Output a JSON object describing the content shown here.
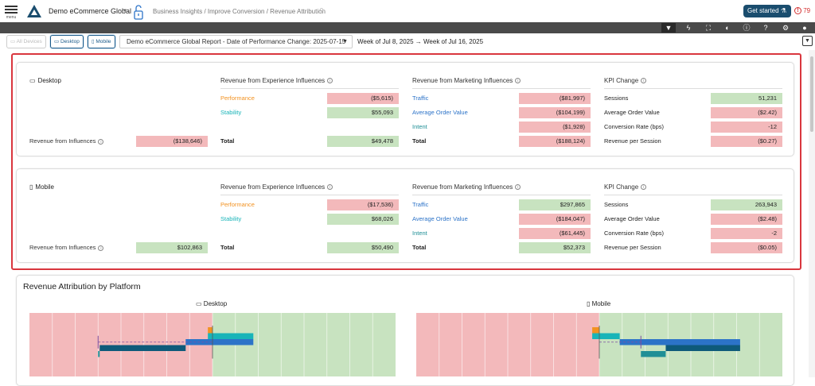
{
  "header": {
    "menu_label": "menu",
    "org_name": "Demo eCommerce Global",
    "breadcrumb": "Business Insights / Improve Conversion / Revenue Attribution",
    "get_started": "Get started",
    "alert_count": "79"
  },
  "filters": {
    "all_devices": "All Devices",
    "desktop": "Desktop",
    "mobile": "Mobile",
    "report": "Demo eCommerce Global Report - Date of Performance Change: 2025-07-15",
    "weeks": "Week of Jul 8, 2025 → Week of Jul 16, 2025"
  },
  "panels": [
    {
      "device": "Desktop",
      "influences_label": "Revenue from Influences",
      "influences_value": "($138,646)",
      "influences_sign": "neg",
      "experience": {
        "header": "Revenue from Experience Influences",
        "rows": [
          {
            "label": "Performance",
            "value": "($5,615)",
            "sign": "neg"
          },
          {
            "label": "Stability",
            "value": "$55,093",
            "sign": "pos"
          }
        ],
        "total_label": "Total",
        "total_value": "$49,478",
        "total_sign": "pos"
      },
      "marketing": {
        "header": "Revenue from Marketing Influences",
        "rows": [
          {
            "label": "Traffic",
            "value": "($81,997)",
            "sign": "neg"
          },
          {
            "label": "Average Order Value",
            "value": "($104,199)",
            "sign": "neg"
          },
          {
            "label": "Intent",
            "value": "($1,928)",
            "sign": "neg"
          }
        ],
        "total_label": "Total",
        "total_value": "($188,124)",
        "total_sign": "neg"
      },
      "kpi": {
        "header": "KPI Change",
        "rows": [
          {
            "label": "Sessions",
            "value": "51,231",
            "sign": "pos"
          },
          {
            "label": "Average Order Value",
            "value": "($2.42)",
            "sign": "neg"
          },
          {
            "label": "Conversion Rate (bps)",
            "value": "-12",
            "sign": "neg"
          },
          {
            "label": "Revenue per Session",
            "value": "($0.27)",
            "sign": "neg"
          }
        ]
      }
    },
    {
      "device": "Mobile",
      "influences_label": "Revenue from Influences",
      "influences_value": "$102,863",
      "influences_sign": "pos",
      "experience": {
        "header": "Revenue from Experience Influences",
        "rows": [
          {
            "label": "Performance",
            "value": "($17,536)",
            "sign": "neg"
          },
          {
            "label": "Stability",
            "value": "$68,026",
            "sign": "pos"
          }
        ],
        "total_label": "Total",
        "total_value": "$50,490",
        "total_sign": "pos"
      },
      "marketing": {
        "header": "Revenue from Marketing Influences",
        "rows": [
          {
            "label": "Traffic",
            "value": "$297,865",
            "sign": "pos"
          },
          {
            "label": "Average Order Value",
            "value": "($184,047)",
            "sign": "neg"
          },
          {
            "label": "Intent",
            "value": "($61,445)",
            "sign": "neg"
          }
        ],
        "total_label": "Total",
        "total_value": "$52,373",
        "total_sign": "pos"
      },
      "kpi": {
        "header": "KPI Change",
        "rows": [
          {
            "label": "Sessions",
            "value": "263,943",
            "sign": "pos"
          },
          {
            "label": "Average Order Value",
            "value": "($2.48)",
            "sign": "neg"
          },
          {
            "label": "Conversion Rate (bps)",
            "value": "-2",
            "sign": "neg"
          },
          {
            "label": "Revenue per Session",
            "value": "($0.05)",
            "sign": "neg"
          }
        ]
      }
    }
  ],
  "chart_section": {
    "title": "Revenue Attribution by Platform",
    "platforms": [
      "Desktop",
      "Mobile"
    ]
  },
  "colors": {
    "negative": "#f3b9bb",
    "positive": "#c8e3c0",
    "performance": "#f29221",
    "stability": "#18b4b8",
    "traffic": "#2c73c8",
    "aov": "#0e5a7a",
    "intent": "#1f8f96",
    "accent": "#1a4d6e",
    "highlight_border": "#d9363e"
  },
  "chart_data": [
    {
      "type": "bar",
      "platform": "Desktop",
      "orientation": "horizontal-waterfall",
      "categories": [
        "Performance",
        "Stability",
        "Traffic",
        "Average Order Value",
        "Intent",
        "Revenue from Influences"
      ],
      "values": [
        -5615,
        55093,
        -81997,
        -104199,
        -1928,
        -138646
      ]
    },
    {
      "type": "bar",
      "platform": "Mobile",
      "orientation": "horizontal-waterfall",
      "categories": [
        "Performance",
        "Stability",
        "Traffic",
        "Average Order Value",
        "Intent",
        "Revenue from Influences"
      ],
      "values": [
        -17536,
        68026,
        297865,
        -184047,
        -61445,
        102863
      ]
    }
  ]
}
